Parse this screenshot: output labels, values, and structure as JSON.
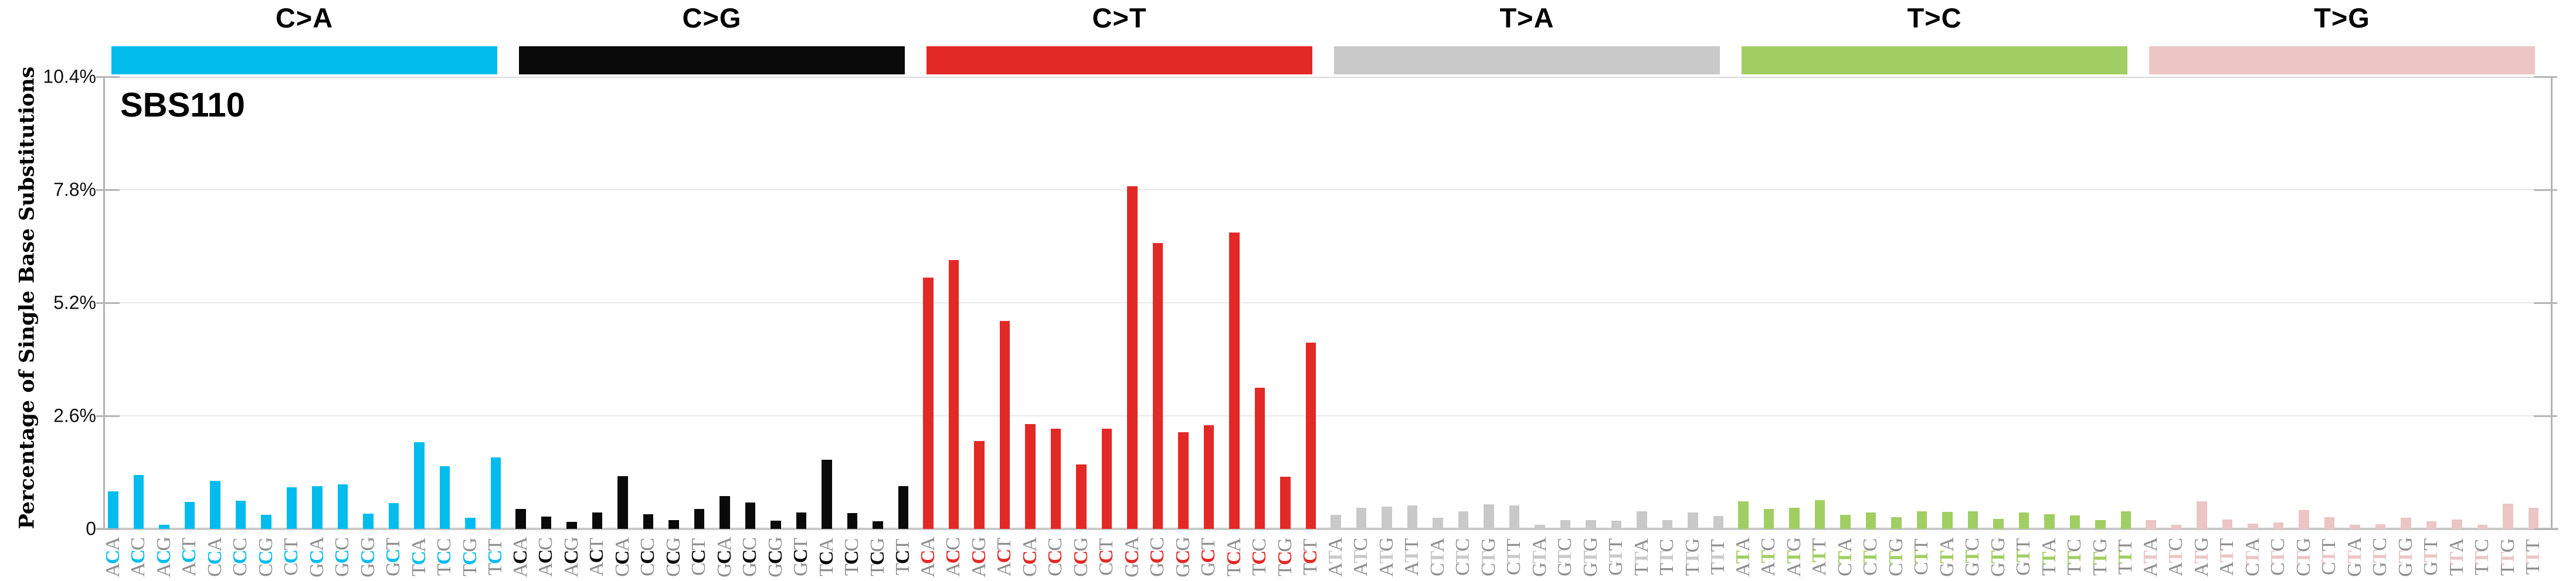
{
  "title": "SBS110",
  "y_axis": {
    "label": "Percentage of Single Base Substitutions",
    "tick_labels": [
      "0",
      "2.6%",
      "5.2%",
      "7.8%",
      "10.4%"
    ]
  },
  "chart_data": {
    "type": "bar",
    "title": "SBS110",
    "xlabel": "",
    "ylabel": "Percentage of Single Base Substitutions",
    "ylim": [
      0,
      10.4
    ],
    "yticks": [
      0,
      2.6,
      5.2,
      7.8,
      10.4
    ],
    "grid": "horizontal-light",
    "legend_position": "none",
    "label_outer_color": "#8f8f8f",
    "groups": [
      {
        "label": "C>A",
        "color": "#03bcee",
        "categories": [
          "ACA",
          "ACC",
          "ACG",
          "ACT",
          "CCA",
          "CCC",
          "CCG",
          "CCT",
          "GCA",
          "GCC",
          "GCG",
          "GCT",
          "TCA",
          "TCC",
          "TCG",
          "TCT"
        ],
        "values": [
          0.86,
          1.24,
          0.1,
          0.62,
          1.11,
          0.64,
          0.33,
          0.95,
          0.99,
          1.02,
          0.35,
          0.59,
          1.99,
          1.44,
          0.26,
          1.64
        ]
      },
      {
        "label": "C>G",
        "color": "#0a0a0a",
        "categories": [
          "ACA",
          "ACC",
          "ACG",
          "ACT",
          "CCA",
          "CCC",
          "CCG",
          "CCT",
          "GCA",
          "GCC",
          "GCG",
          "GCT",
          "TCA",
          "TCC",
          "TCG",
          "TCT"
        ],
        "values": [
          0.46,
          0.28,
          0.16,
          0.38,
          1.21,
          0.34,
          0.2,
          0.46,
          0.76,
          0.61,
          0.19,
          0.38,
          1.59,
          0.37,
          0.18,
          0.98
        ]
      },
      {
        "label": "C>T",
        "color": "#e32926",
        "categories": [
          "ACA",
          "ACC",
          "ACG",
          "ACT",
          "CCA",
          "CCC",
          "CCG",
          "CCT",
          "GCA",
          "GCC",
          "GCG",
          "GCT",
          "TCA",
          "TCC",
          "TCG",
          "TCT"
        ],
        "values": [
          5.78,
          6.19,
          2.02,
          4.78,
          2.41,
          2.3,
          1.48,
          2.31,
          7.88,
          6.58,
          2.22,
          2.38,
          6.82,
          3.25,
          1.2,
          4.29
        ]
      },
      {
        "label": "T>A",
        "color": "#cac9c9",
        "categories": [
          "ATA",
          "ATC",
          "ATG",
          "ATT",
          "CTA",
          "CTC",
          "CTG",
          "CTT",
          "GTA",
          "GTC",
          "GTG",
          "GTT",
          "TTA",
          "TTC",
          "TTG",
          "TTT"
        ],
        "values": [
          0.32,
          0.48,
          0.51,
          0.54,
          0.26,
          0.4,
          0.56,
          0.54,
          0.1,
          0.2,
          0.2,
          0.19,
          0.41,
          0.2,
          0.38,
          0.3
        ]
      },
      {
        "label": "T>C",
        "color": "#a1ce63",
        "categories": [
          "ATA",
          "ATC",
          "ATG",
          "ATT",
          "CTA",
          "CTC",
          "CTG",
          "CTT",
          "GTA",
          "GTC",
          "GTG",
          "GTT",
          "TTA",
          "TTC",
          "TTG",
          "TTT"
        ],
        "values": [
          0.63,
          0.46,
          0.48,
          0.66,
          0.32,
          0.38,
          0.27,
          0.4,
          0.39,
          0.41,
          0.23,
          0.38,
          0.34,
          0.31,
          0.2,
          0.41
        ]
      },
      {
        "label": "T>G",
        "color": "#ebc6c4",
        "categories": [
          "ATA",
          "ATC",
          "ATG",
          "ATT",
          "CTA",
          "CTC",
          "CTG",
          "CTT",
          "GTA",
          "GTC",
          "GTG",
          "GTT",
          "TTA",
          "TTC",
          "TTG",
          "TTT"
        ],
        "values": [
          0.2,
          0.1,
          0.63,
          0.21,
          0.12,
          0.15,
          0.43,
          0.27,
          0.09,
          0.11,
          0.25,
          0.17,
          0.22,
          0.1,
          0.58,
          0.49
        ]
      }
    ]
  }
}
